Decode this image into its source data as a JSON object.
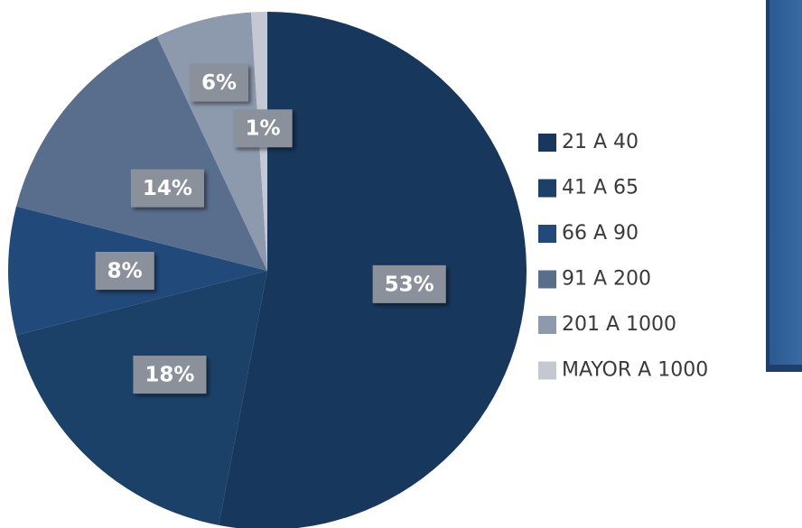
{
  "chart_data": {
    "type": "pie",
    "categories": [
      "21 A 40",
      "41 A 65",
      "66 A 90",
      "91 A 200",
      "201 A 1000",
      "MAYOR A 1000"
    ],
    "values": [
      53,
      18,
      8,
      14,
      6,
      1
    ],
    "value_labels": [
      "53%",
      "18%",
      "8%",
      "14%",
      "6%",
      "1%"
    ],
    "colors": [
      "#17375c",
      "#1c4169",
      "#21497a",
      "#596e8d",
      "#8d9aae",
      "#c3c8d3"
    ]
  }
}
